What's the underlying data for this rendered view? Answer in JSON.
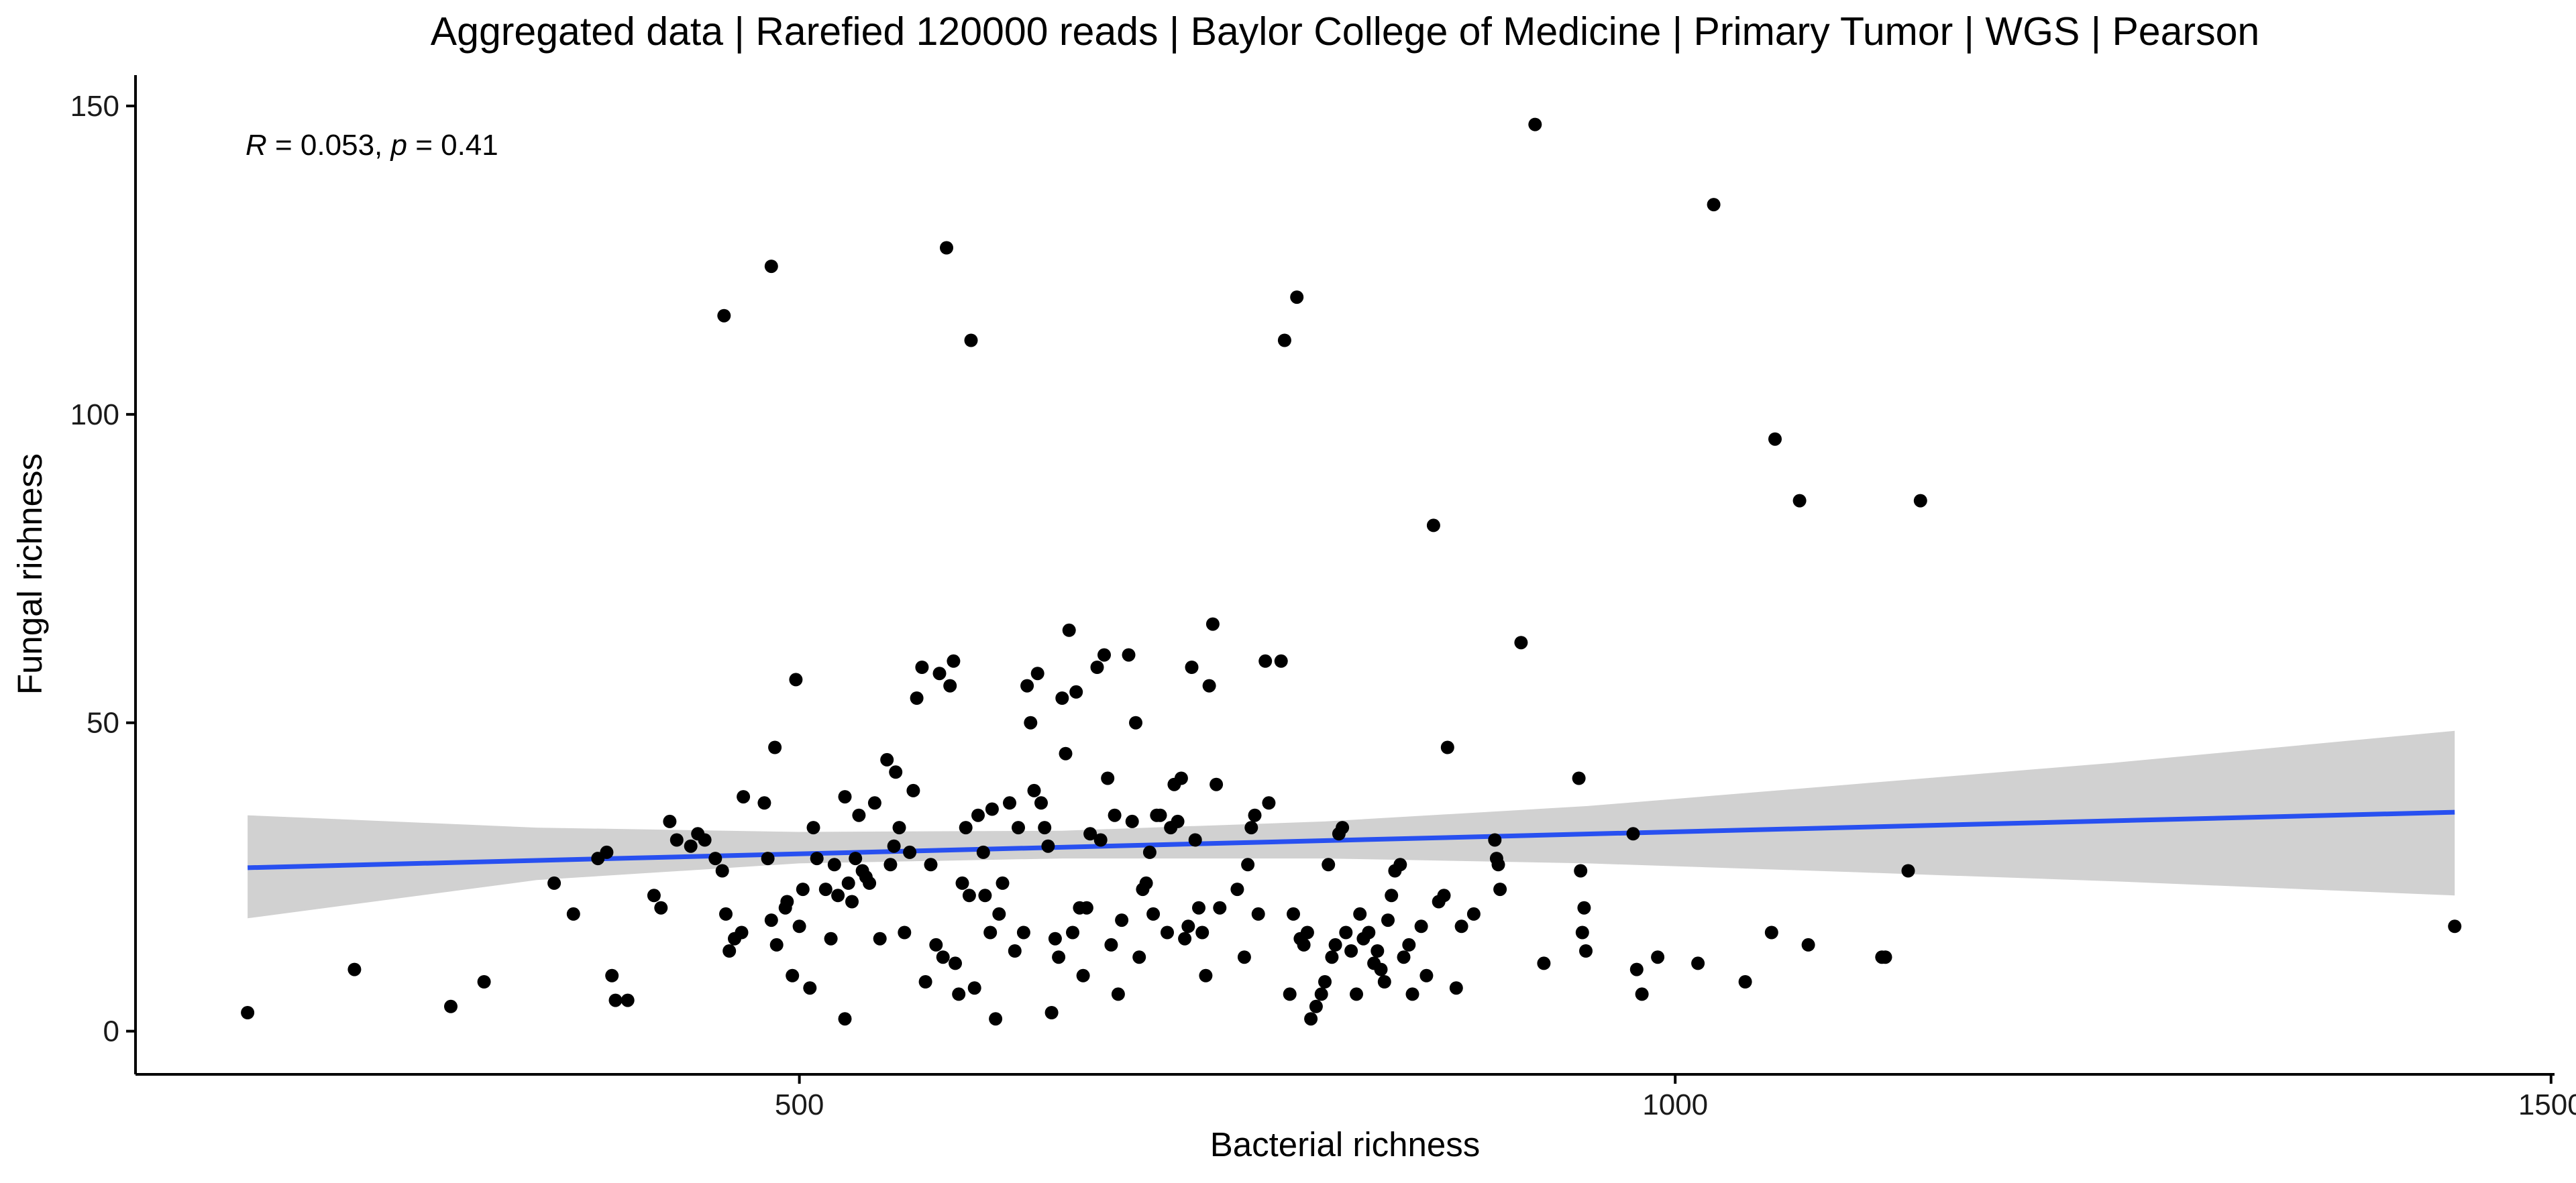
{
  "colors": {
    "points": "#000000",
    "fit_line": "#2850f0",
    "confidence_band": "#cccccc",
    "axis": "#000000"
  },
  "chart_data": {
    "type": "scatter",
    "title": "Aggregated data | Rarefied 120000 reads | Baylor College of Medicine | Primary Tumor | WGS | Pearson",
    "xlabel": "Bacterial richness",
    "ylabel": "Fungal richness",
    "xlim": [
      121,
      1502
    ],
    "ylim": [
      -7,
      155
    ],
    "x_ticks": [
      500,
      1000,
      1500
    ],
    "x_tick_labels": [
      "500",
      "1000",
      "1500"
    ],
    "y_ticks": [
      0,
      50,
      100,
      150
    ],
    "y_tick_labels": [
      "0",
      "50",
      "100",
      "150"
    ],
    "grid": false,
    "legend": "none",
    "annotation": {
      "r_symbol": "R",
      "r_value": " = 0.053, ",
      "p_symbol": "p",
      "p_value": " = 0.41"
    },
    "regression": {
      "x": [
        185,
        1445
      ],
      "y": [
        26.5,
        35.5
      ]
    },
    "confidence_band": {
      "x": [
        185,
        350,
        500,
        650,
        800,
        950,
        1100,
        1250,
        1445
      ],
      "lower": [
        18.3,
        24.5,
        27.2,
        28.0,
        28.0,
        27.2,
        25.8,
        24.3,
        22.0
      ],
      "upper": [
        35.0,
        33.0,
        32.3,
        32.5,
        34.0,
        36.5,
        40.0,
        43.5,
        48.7
      ]
    },
    "points": [
      [
        185,
        3
      ],
      [
        246,
        10
      ],
      [
        301,
        4
      ],
      [
        320,
        8
      ],
      [
        360,
        24
      ],
      [
        371,
        19
      ],
      [
        385,
        28
      ],
      [
        390,
        29
      ],
      [
        393,
        9
      ],
      [
        395,
        5
      ],
      [
        402,
        5
      ],
      [
        417,
        22
      ],
      [
        421,
        20
      ],
      [
        426,
        34
      ],
      [
        430,
        31
      ],
      [
        438,
        30
      ],
      [
        442,
        32
      ],
      [
        446,
        31
      ],
      [
        452,
        28
      ],
      [
        457,
        116
      ],
      [
        456,
        26
      ],
      [
        458,
        19
      ],
      [
        460,
        13
      ],
      [
        463,
        15
      ],
      [
        467,
        16
      ],
      [
        468,
        38
      ],
      [
        480,
        37
      ],
      [
        482,
        28
      ],
      [
        484,
        124
      ],
      [
        484,
        18
      ],
      [
        486,
        46
      ],
      [
        487,
        14
      ],
      [
        492,
        20
      ],
      [
        493,
        21
      ],
      [
        496,
        9
      ],
      [
        498,
        57
      ],
      [
        500,
        17
      ],
      [
        502,
        23
      ],
      [
        506,
        7
      ],
      [
        508,
        33
      ],
      [
        510,
        28
      ],
      [
        515,
        23
      ],
      [
        518,
        15
      ],
      [
        520,
        27
      ],
      [
        522,
        22
      ],
      [
        526,
        2
      ],
      [
        526,
        38
      ],
      [
        528,
        24
      ],
      [
        530,
        21
      ],
      [
        532,
        28
      ],
      [
        534,
        35
      ],
      [
        536,
        26
      ],
      [
        538,
        25
      ],
      [
        540,
        24
      ],
      [
        543,
        37
      ],
      [
        546,
        15
      ],
      [
        550,
        44
      ],
      [
        552,
        27
      ],
      [
        554,
        30
      ],
      [
        555,
        42
      ],
      [
        557,
        33
      ],
      [
        560,
        16
      ],
      [
        563,
        29
      ],
      [
        565,
        39
      ],
      [
        567,
        54
      ],
      [
        570,
        59
      ],
      [
        572,
        8
      ],
      [
        575,
        27
      ],
      [
        578,
        14
      ],
      [
        580,
        58
      ],
      [
        582,
        12
      ],
      [
        584,
        127
      ],
      [
        586,
        56
      ],
      [
        588,
        60
      ],
      [
        589,
        11
      ],
      [
        591,
        6
      ],
      [
        593,
        24
      ],
      [
        595,
        33
      ],
      [
        597,
        22
      ],
      [
        598,
        112
      ],
      [
        600,
        7
      ],
      [
        602,
        35
      ],
      [
        605,
        29
      ],
      [
        606,
        22
      ],
      [
        609,
        16
      ],
      [
        610,
        36
      ],
      [
        612,
        2
      ],
      [
        614,
        19
      ],
      [
        616,
        24
      ],
      [
        620,
        37
      ],
      [
        623,
        13
      ],
      [
        625,
        33
      ],
      [
        628,
        16
      ],
      [
        630,
        56
      ],
      [
        632,
        50
      ],
      [
        634,
        39
      ],
      [
        636,
        58
      ],
      [
        638,
        37
      ],
      [
        640,
        33
      ],
      [
        642,
        30
      ],
      [
        644,
        3
      ],
      [
        646,
        15
      ],
      [
        648,
        12
      ],
      [
        650,
        54
      ],
      [
        652,
        45
      ],
      [
        654,
        65
      ],
      [
        656,
        16
      ],
      [
        658,
        55
      ],
      [
        660,
        20
      ],
      [
        662,
        9
      ],
      [
        664,
        20
      ],
      [
        666,
        32
      ],
      [
        670,
        59
      ],
      [
        672,
        31
      ],
      [
        674,
        61
      ],
      [
        676,
        41
      ],
      [
        678,
        14
      ],
      [
        680,
        35
      ],
      [
        682,
        6
      ],
      [
        684,
        18
      ],
      [
        688,
        61
      ],
      [
        690,
        34
      ],
      [
        692,
        50
      ],
      [
        694,
        12
      ],
      [
        696,
        23
      ],
      [
        698,
        24
      ],
      [
        700,
        29
      ],
      [
        702,
        19
      ],
      [
        704,
        35
      ],
      [
        706,
        35
      ],
      [
        710,
        16
      ],
      [
        712,
        33
      ],
      [
        714,
        40
      ],
      [
        716,
        34
      ],
      [
        718,
        41
      ],
      [
        720,
        15
      ],
      [
        722,
        17
      ],
      [
        724,
        59
      ],
      [
        726,
        31
      ],
      [
        728,
        20
      ],
      [
        730,
        16
      ],
      [
        732,
        9
      ],
      [
        734,
        56
      ],
      [
        736,
        66
      ],
      [
        738,
        40
      ],
      [
        740,
        20
      ],
      [
        750,
        23
      ],
      [
        754,
        12
      ],
      [
        756,
        27
      ],
      [
        758,
        33
      ],
      [
        760,
        35
      ],
      [
        762,
        19
      ],
      [
        766,
        60
      ],
      [
        768,
        37
      ],
      [
        775,
        60
      ],
      [
        777,
        112
      ],
      [
        780,
        6
      ],
      [
        782,
        19
      ],
      [
        784,
        119
      ],
      [
        786,
        15
      ],
      [
        788,
        14
      ],
      [
        790,
        16
      ],
      [
        792,
        2
      ],
      [
        795,
        4
      ],
      [
        798,
        6
      ],
      [
        800,
        8
      ],
      [
        802,
        27
      ],
      [
        804,
        12
      ],
      [
        806,
        14
      ],
      [
        808,
        32
      ],
      [
        810,
        33
      ],
      [
        812,
        16
      ],
      [
        815,
        13
      ],
      [
        818,
        6
      ],
      [
        820,
        19
      ],
      [
        822,
        15
      ],
      [
        825,
        16
      ],
      [
        828,
        11
      ],
      [
        830,
        13
      ],
      [
        832,
        10
      ],
      [
        834,
        8
      ],
      [
        836,
        18
      ],
      [
        838,
        22
      ],
      [
        840,
        26
      ],
      [
        843,
        27
      ],
      [
        845,
        12
      ],
      [
        848,
        14
      ],
      [
        850,
        6
      ],
      [
        855,
        17
      ],
      [
        858,
        9
      ],
      [
        862,
        82
      ],
      [
        865,
        21
      ],
      [
        868,
        22
      ],
      [
        870,
        46
      ],
      [
        875,
        7
      ],
      [
        878,
        17
      ],
      [
        885,
        19
      ],
      [
        897,
        31
      ],
      [
        898,
        28
      ],
      [
        899,
        27
      ],
      [
        900,
        23
      ],
      [
        912,
        63
      ],
      [
        920,
        147
      ],
      [
        925,
        11
      ],
      [
        945,
        41
      ],
      [
        946,
        26
      ],
      [
        947,
        16
      ],
      [
        948,
        20
      ],
      [
        949,
        13
      ],
      [
        976,
        32
      ],
      [
        978,
        10
      ],
      [
        981,
        6
      ],
      [
        990,
        12
      ],
      [
        1013,
        11
      ],
      [
        1022,
        134
      ],
      [
        1040,
        8
      ],
      [
        1055,
        16
      ],
      [
        1057,
        96
      ],
      [
        1071,
        86
      ],
      [
        1076,
        14
      ],
      [
        1118,
        12
      ],
      [
        1120,
        12
      ],
      [
        1133,
        26
      ],
      [
        1140,
        86
      ],
      [
        1445,
        17
      ]
    ]
  }
}
